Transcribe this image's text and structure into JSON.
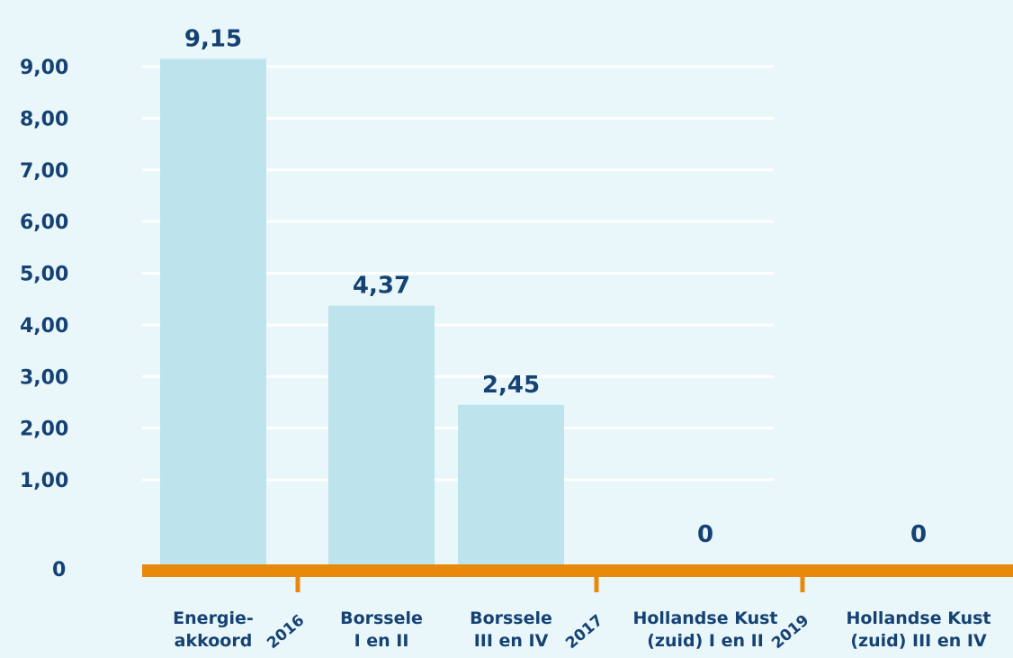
{
  "colors": {
    "background": "#e9f6fa",
    "bar": "#bde3ec",
    "gridline": "#ffffff",
    "axis": "#e8890c",
    "text": "#154273"
  },
  "chart_data": {
    "type": "bar",
    "title": "",
    "xlabel": "",
    "ylabel": "",
    "ylim": [
      0,
      10
    ],
    "grid": true,
    "ytick_values": [
      1,
      2,
      3,
      4,
      5,
      6,
      7,
      8,
      9
    ],
    "ytick_labels": [
      "1,00",
      "2,00",
      "3,00",
      "4,00",
      "5,00",
      "6,00",
      "7,00",
      "8,00",
      "9,00"
    ],
    "zero_label": "0",
    "categories": [
      [
        "Energie-",
        "akkoord"
      ],
      [
        "Borssele",
        "I en II"
      ],
      [
        "Borssele",
        "III en IV"
      ],
      [
        "Hollandse Kust",
        "(zuid) I en II"
      ],
      [
        "Hollandse Kust",
        "(zuid) III en IV"
      ]
    ],
    "values": [
      9.15,
      4.37,
      2.45,
      0,
      0
    ],
    "data_labels": [
      "9,15",
      "4,37",
      "2,45",
      "0",
      "0"
    ],
    "year_markers": [
      "2016",
      "2017",
      "2019"
    ]
  }
}
